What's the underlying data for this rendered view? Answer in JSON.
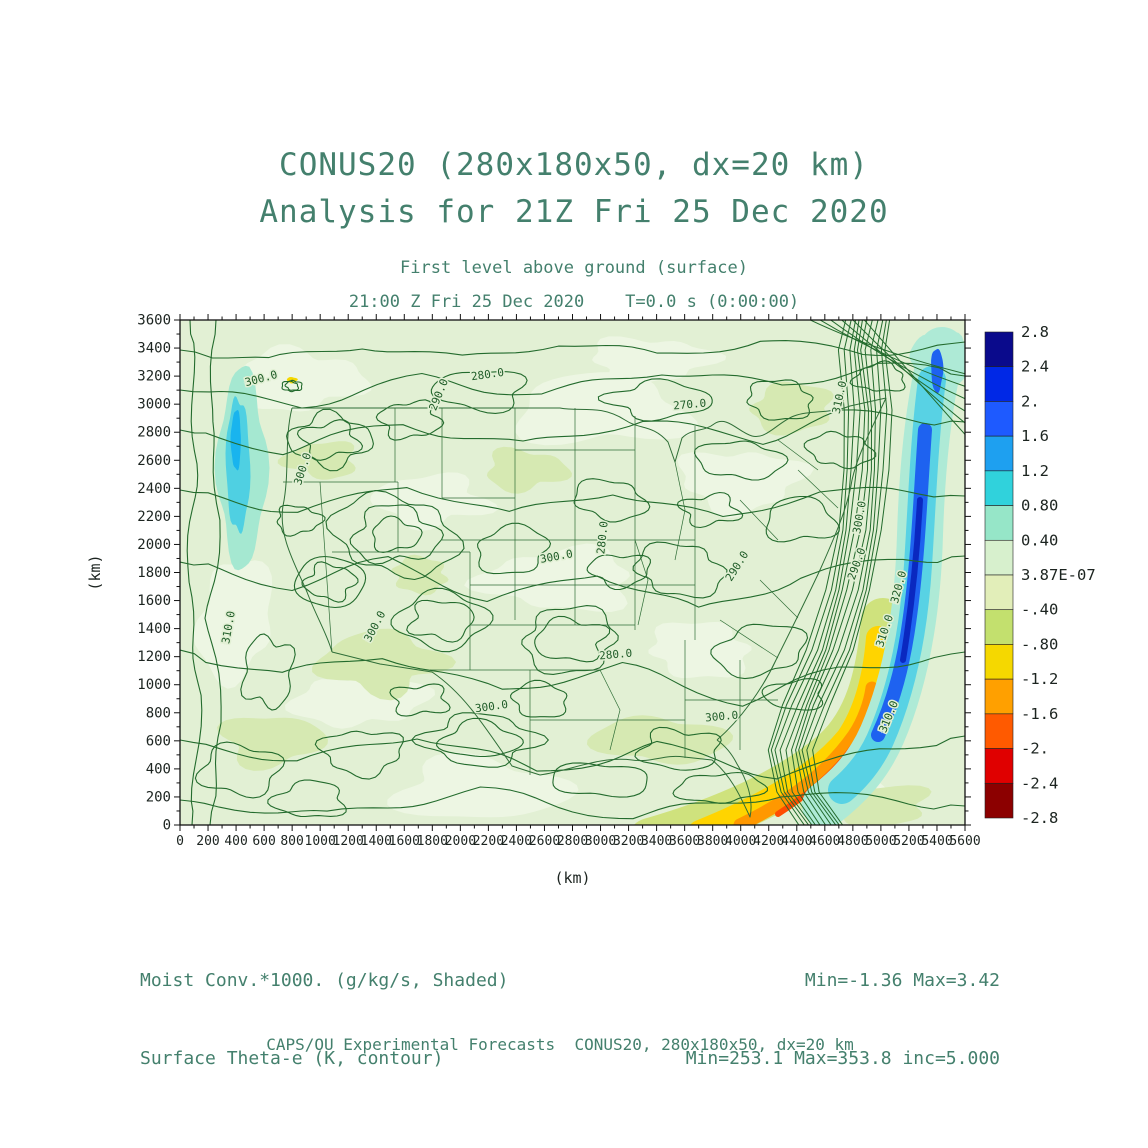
{
  "header": {
    "title_line1": "CONUS20 (280x180x50, dx=20 km)",
    "title_line2": "Analysis for 21Z Fri 25 Dec 2020",
    "subtitle1": "First level above ground (surface)",
    "subtitle2": "21:00 Z Fri 25 Dec 2020    T=0.0 s (0:00:00)"
  },
  "footer": {
    "field1": "Moist Conv.*1000. (g/kg/s, Shaded)",
    "field2": "Surface Theta-e (K, contour)",
    "stats1": "Min=-1.36 Max=3.42",
    "stats2": "Min=253.1 Max=353.8 inc=5.000",
    "credit": "CAPS/OU Experimental Forecasts  CONUS20, 280x180x50, dx=20 km"
  },
  "chart_data": {
    "type": "heatmap",
    "title": "CONUS20 (280x180x50, dx=20 km) Analysis for 21Z Fri 25 Dec 2020",
    "subtitle": "First level above ground (surface) 21:00 Z Fri 25 Dec 2020 T=0.0 s (0:00:00)",
    "xlabel": "(km)",
    "ylabel": "(km)",
    "xlim": [
      0,
      5600
    ],
    "ylim": [
      0,
      3600
    ],
    "grid": false,
    "x_ticks": [
      0,
      200,
      400,
      600,
      800,
      1000,
      1200,
      1400,
      1600,
      1800,
      2000,
      2200,
      2400,
      2600,
      2800,
      3000,
      3200,
      3400,
      3600,
      3800,
      4000,
      4200,
      4400,
      4600,
      4800,
      5000,
      5200,
      5400,
      5600
    ],
    "y_ticks": [
      0,
      200,
      400,
      600,
      800,
      1000,
      1200,
      1400,
      1600,
      1800,
      2000,
      2200,
      2400,
      2600,
      2800,
      3000,
      3200,
      3400,
      3600
    ],
    "shaded_field": {
      "name": "Moist Conv.*1000.",
      "units": "g/kg/s",
      "min": -1.36,
      "max": 3.42
    },
    "contour_field": {
      "name": "Surface Theta-e",
      "units": "K",
      "min": 253.1,
      "max": 353.8,
      "increment": 5.0
    },
    "contour_levels_visible": [
      "270.0",
      "280.0",
      "290.0",
      "300.0",
      "310.0",
      "320.0"
    ],
    "colorbar": {
      "position": "right",
      "tick_labels": [
        "2.8",
        "2.4",
        "2.",
        "1.6",
        "1.2",
        "0.80",
        "0.40",
        "3.87E-07",
        "-.40",
        "-.80",
        "-1.2",
        "-1.6",
        "-2.",
        "-2.4",
        "-2.8"
      ],
      "cell_colors": [
        "#0a0a8c",
        "#0028e6",
        "#1e5aff",
        "#1ea0f0",
        "#30d2dc",
        "#96e6c8",
        "#d7f0cd",
        "#e2eeb9",
        "#c3e06e",
        "#f5d800",
        "#ffa000",
        "#ff5a00",
        "#e00000",
        "#8c0000"
      ]
    },
    "contour_labels_on_map": [
      {
        "text": "300.0",
        "x": 82,
        "y": 62,
        "rot": -15
      },
      {
        "text": "280.0",
        "x": 308,
        "y": 58,
        "rot": -8
      },
      {
        "text": "290.0",
        "x": 262,
        "y": 76,
        "rot": -68
      },
      {
        "text": "270.0",
        "x": 510,
        "y": 88,
        "rot": -5
      },
      {
        "text": "310.0",
        "x": 663,
        "y": 78,
        "rot": -78
      },
      {
        "text": "300.0",
        "x": 126,
        "y": 150,
        "rot": -72
      },
      {
        "text": "280.0",
        "x": 426,
        "y": 218,
        "rot": -84
      },
      {
        "text": "300.0",
        "x": 377,
        "y": 240,
        "rot": -10
      },
      {
        "text": "290.0",
        "x": 560,
        "y": 248,
        "rot": -58
      },
      {
        "text": "300.0",
        "x": 683,
        "y": 198,
        "rot": -80
      },
      {
        "text": "290.0",
        "x": 680,
        "y": 245,
        "rot": -70
      },
      {
        "text": "320.0",
        "x": 722,
        "y": 268,
        "rot": -75
      },
      {
        "text": "310.0",
        "x": 52,
        "y": 308,
        "rot": -80
      },
      {
        "text": "300.0",
        "x": 198,
        "y": 308,
        "rot": -62
      },
      {
        "text": "310.0",
        "x": 708,
        "y": 312,
        "rot": -72
      },
      {
        "text": "280.0",
        "x": 436,
        "y": 338,
        "rot": -5
      },
      {
        "text": "300.0",
        "x": 312,
        "y": 390,
        "rot": -8
      },
      {
        "text": "300.0",
        "x": 542,
        "y": 400,
        "rot": -5
      },
      {
        "text": "310.0",
        "x": 712,
        "y": 398,
        "rot": -68
      }
    ]
  }
}
